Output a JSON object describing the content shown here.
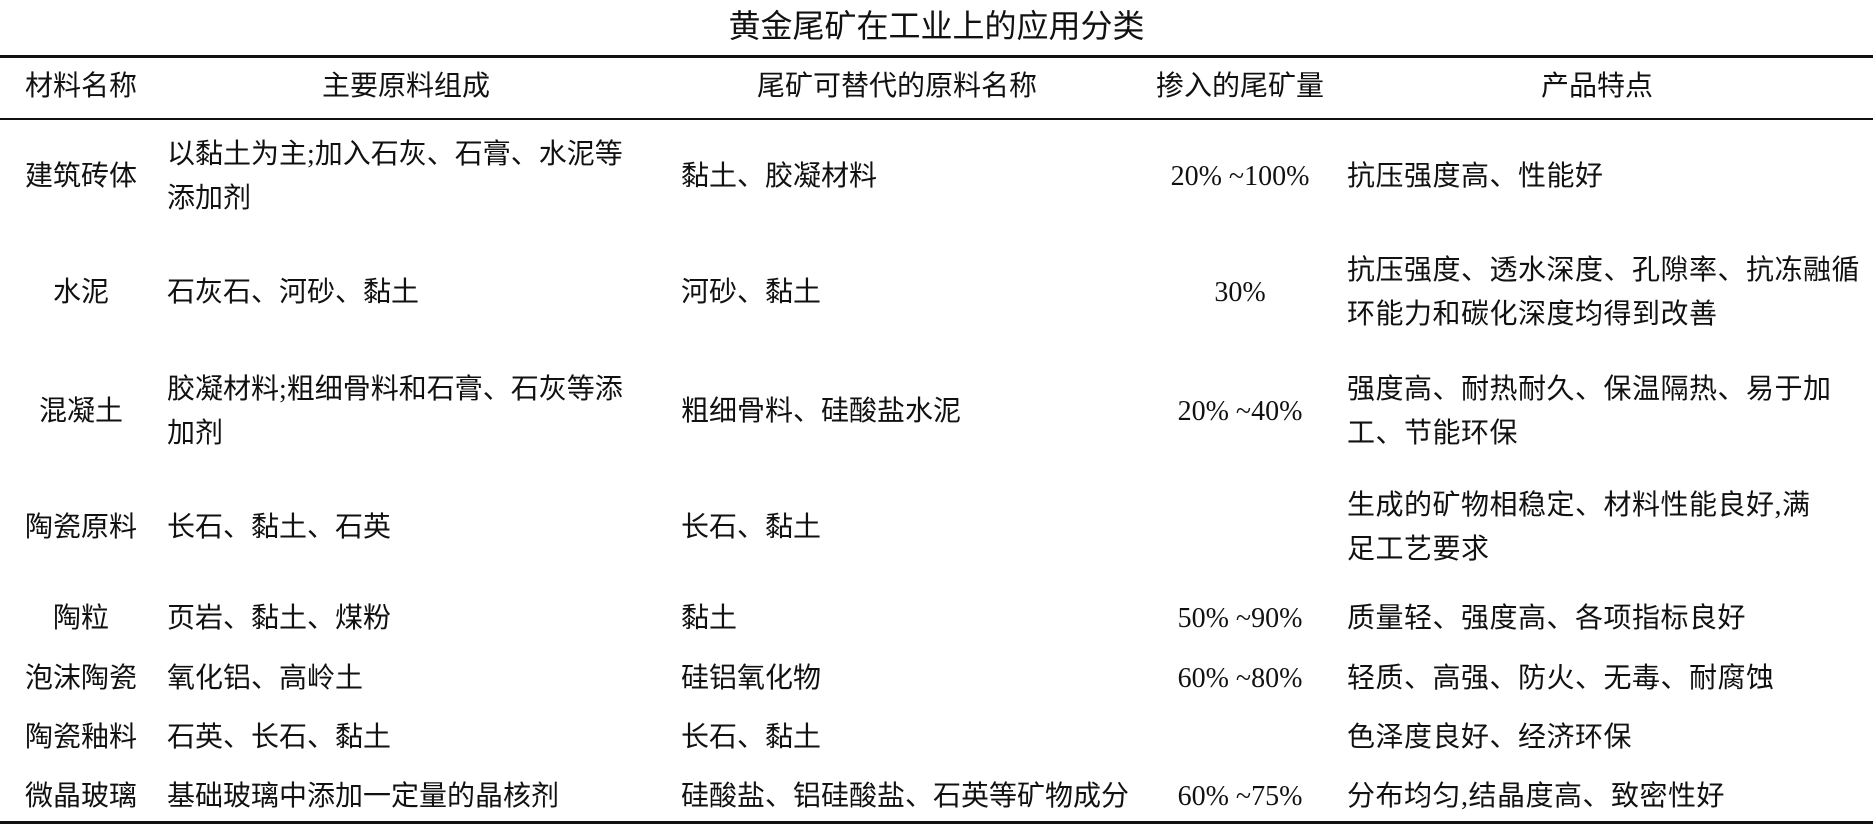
{
  "title": "黄金尾矿在工业上的应用分类",
  "headers": [
    "材料名称",
    "主要原料组成",
    "尾矿可替代的原料名称",
    "掺入的尾矿量",
    "产品特点"
  ],
  "rows": [
    {
      "material": "建筑砖体",
      "composition": [
        "以黏土为主;加入石灰、石膏、水泥等",
        "添加剂"
      ],
      "replaceable": "黏土、胶凝材料",
      "amount": "20% ~100%",
      "features": [
        "抗压强度高、性能好"
      ]
    },
    {
      "material": "水泥",
      "composition": [
        "石灰石、河砂、黏土"
      ],
      "replaceable": "河砂、黏土",
      "amount": "30%",
      "features": [
        "抗压强度、透水深度、孔隙率、抗冻融循",
        "环能力和碳化深度均得到改善"
      ]
    },
    {
      "material": "混凝土",
      "composition": [
        "胶凝材料;粗细骨料和石膏、石灰等添",
        "加剂"
      ],
      "replaceable": "粗细骨料、硅酸盐水泥",
      "amount": "20% ~40%",
      "features": [
        "强度高、耐热耐久、保温隔热、易于加",
        "工、节能环保"
      ]
    },
    {
      "material": "陶瓷原料",
      "composition": [
        "长石、黏土、石英"
      ],
      "replaceable": "长石、黏土",
      "amount": "",
      "features": [
        "生成的矿物相稳定、材料性能良好,满",
        "足工艺要求"
      ]
    },
    {
      "material": "陶粒",
      "composition": [
        "页岩、黏土、煤粉"
      ],
      "replaceable": "黏土",
      "amount": "50% ~90%",
      "features": [
        "质量轻、强度高、各项指标良好"
      ]
    },
    {
      "material": "泡沫陶瓷",
      "composition": [
        "氧化铝、高岭土"
      ],
      "replaceable": "硅铝氧化物",
      "amount": "60% ~80%",
      "features": [
        "轻质、高强、防火、无毒、耐腐蚀"
      ]
    },
    {
      "material": "陶瓷釉料",
      "composition": [
        "石英、长石、黏土"
      ],
      "replaceable": "长石、黏土",
      "amount": "",
      "features": [
        "色泽度良好、经济环保"
      ]
    },
    {
      "material": "微晶玻璃",
      "composition": [
        "基础玻璃中添加一定量的晶核剂"
      ],
      "replaceable": "硅酸盐、铝硅酸盐、石英等矿物成分",
      "amount": "60% ~75%",
      "features": [
        "分布均匀,结晶度高、致密性好"
      ]
    }
  ]
}
